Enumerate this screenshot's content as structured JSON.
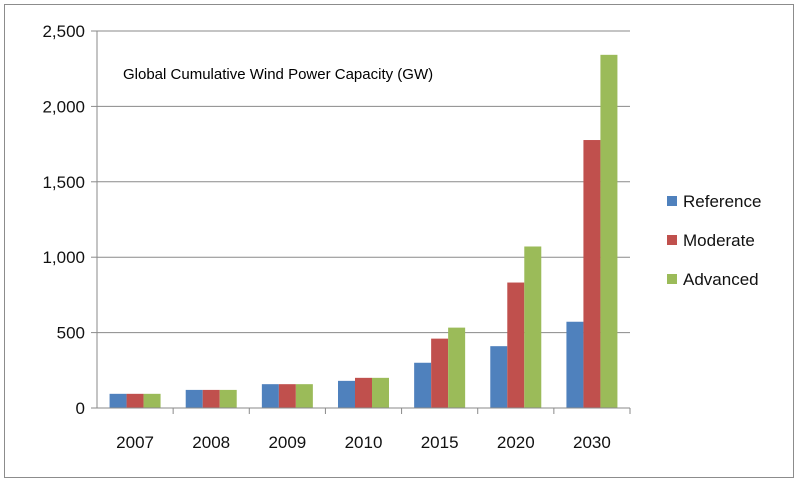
{
  "chart_data": {
    "type": "bar",
    "title": "Global Cumulative Wind Power Capacity (GW)",
    "xlabel": "",
    "ylabel": "",
    "categories": [
      "2007",
      "2008",
      "2009",
      "2010",
      "2015",
      "2020",
      "2030"
    ],
    "series": [
      {
        "name": "Reference",
        "color": "#4f81bd",
        "values": [
          94,
          120,
          158,
          180,
          300,
          410,
          572
        ]
      },
      {
        "name": "Moderate",
        "color": "#c0504d",
        "values": [
          94,
          120,
          158,
          200,
          460,
          832,
          1777
        ]
      },
      {
        "name": "Advanced",
        "color": "#9bbb59",
        "values": [
          94,
          120,
          158,
          200,
          533,
          1071,
          2342
        ]
      }
    ],
    "ylim": [
      0,
      2500
    ],
    "yticks": [
      0,
      500,
      1000,
      1500,
      2000,
      2500
    ],
    "ytick_labels": [
      "0",
      "500",
      "1,000",
      "1,500",
      "2,000",
      "2,500"
    ],
    "grid": true,
    "legend_position": "right"
  }
}
